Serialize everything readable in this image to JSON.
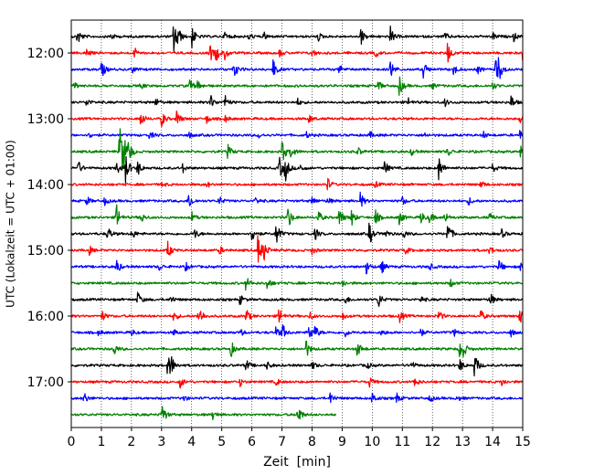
{
  "chart_data": {
    "type": "line",
    "title": "",
    "xlabel": "Zeit  [min]",
    "ylabel": "UTC (Lokalzeit = UTC + 01:00)",
    "xlim": [
      0,
      15
    ],
    "x_ticks": [
      "0",
      "1",
      "2",
      "3",
      "4",
      "5",
      "6",
      "7",
      "8",
      "9",
      "10",
      "11",
      "12",
      "13",
      "14",
      "15"
    ],
    "y_ticks": [
      "12:00",
      "13:00",
      "14:00",
      "15:00",
      "16:00",
      "17:00"
    ],
    "grid": "vertical dotted at each minute",
    "trace_interval_min": 15,
    "colors_cycle": [
      "#000000",
      "#ff0000",
      "#0000ff",
      "#008000"
    ],
    "series": [
      {
        "start": "11:45",
        "color": "#000000",
        "end_min": 15,
        "events": [
          [
            0.2,
            0.9
          ],
          [
            1.3,
            0.4
          ],
          [
            3.4,
            1.6
          ],
          [
            3.5,
            1.0
          ],
          [
            4.0,
            1.1
          ],
          [
            5.1,
            0.5
          ],
          [
            5.9,
            0.4
          ],
          [
            6.4,
            0.4
          ],
          [
            8.2,
            0.4
          ],
          [
            9.6,
            1.0
          ],
          [
            10.6,
            0.9
          ],
          [
            12.4,
            0.4
          ],
          [
            14.0,
            0.4
          ],
          [
            14.7,
            0.4
          ]
        ]
      },
      {
        "start": "12:00",
        "color": "#ff0000",
        "end_min": 15,
        "events": [
          [
            0.5,
            0.4
          ],
          [
            2.1,
            0.5
          ],
          [
            4.6,
            0.9
          ],
          [
            4.8,
            0.8
          ],
          [
            5.1,
            0.6
          ],
          [
            6.9,
            0.4
          ],
          [
            8.0,
            0.4
          ],
          [
            10.1,
            0.4
          ],
          [
            12.5,
            1.1
          ],
          [
            15.0,
            0.9
          ]
        ]
      },
      {
        "start": "12:15",
        "color": "#0000ff",
        "end_min": 15,
        "events": [
          [
            1.0,
            0.9
          ],
          [
            2.0,
            0.4
          ],
          [
            5.4,
            0.9
          ],
          [
            6.7,
            1.0
          ],
          [
            8.9,
            0.5
          ],
          [
            10.6,
            1.0
          ],
          [
            11.7,
            0.8
          ],
          [
            12.7,
            0.6
          ],
          [
            13.5,
            0.4
          ],
          [
            14.1,
            1.3
          ],
          [
            14.2,
            0.9
          ]
        ]
      },
      {
        "start": "12:30",
        "color": "#008000",
        "end_min": 15,
        "events": [
          [
            0.1,
            0.3
          ],
          [
            2.3,
            0.3
          ],
          [
            3.9,
            0.9
          ],
          [
            4.2,
            0.5
          ],
          [
            10.2,
            0.5
          ],
          [
            10.9,
            1.0
          ],
          [
            12.0,
            0.3
          ],
          [
            14.0,
            0.4
          ]
        ]
      },
      {
        "start": "12:45",
        "color": "#000000",
        "end_min": 15,
        "events": [
          [
            0.5,
            0.4
          ],
          [
            2.8,
            0.4
          ],
          [
            4.6,
            0.9
          ],
          [
            5.1,
            0.7
          ],
          [
            7.5,
            0.4
          ],
          [
            11.2,
            0.4
          ],
          [
            12.4,
            0.4
          ],
          [
            14.6,
            0.8
          ]
        ]
      },
      {
        "start": "13:00",
        "color": "#ff0000",
        "end_min": 15,
        "events": [
          [
            2.3,
            0.8
          ],
          [
            3.0,
            0.8
          ],
          [
            3.5,
            0.9
          ],
          [
            4.5,
            0.4
          ],
          [
            5.1,
            0.4
          ],
          [
            7.9,
            0.4
          ],
          [
            14.9,
            0.4
          ]
        ]
      },
      {
        "start": "13:15",
        "color": "#0000ff",
        "end_min": 15,
        "events": [
          [
            0.6,
            0.3
          ],
          [
            2.6,
            0.4
          ],
          [
            3.9,
            0.3
          ],
          [
            6.2,
            0.3
          ],
          [
            7.8,
            0.3
          ],
          [
            9.9,
            0.4
          ],
          [
            11.7,
            0.3
          ],
          [
            13.7,
            0.3
          ],
          [
            14.9,
            0.4
          ]
        ]
      },
      {
        "start": "13:30",
        "color": "#008000",
        "end_min": 15,
        "events": [
          [
            1.6,
            2.6
          ],
          [
            1.7,
            1.8
          ],
          [
            1.9,
            1.0
          ],
          [
            5.2,
            0.7
          ],
          [
            7.0,
            1.2
          ],
          [
            7.3,
            0.7
          ],
          [
            9.5,
            0.5
          ],
          [
            11.3,
            0.4
          ],
          [
            12.5,
            0.5
          ],
          [
            14.9,
            0.7
          ]
        ]
      },
      {
        "start": "13:45",
        "color": "#000000",
        "end_min": 15,
        "events": [
          [
            0.2,
            0.9
          ],
          [
            1.5,
            0.6
          ],
          [
            1.8,
            1.5
          ],
          [
            2.2,
            0.8
          ],
          [
            3.7,
            0.4
          ],
          [
            6.9,
            1.2
          ],
          [
            7.1,
            1.3
          ],
          [
            7.6,
            0.4
          ],
          [
            10.4,
            0.8
          ],
          [
            12.2,
            1.4
          ],
          [
            14.0,
            0.4
          ]
        ]
      },
      {
        "start": "14:00",
        "color": "#ff0000",
        "end_min": 15,
        "events": [
          [
            3.0,
            0.3
          ],
          [
            4.5,
            0.3
          ],
          [
            8.5,
            0.7
          ],
          [
            10.1,
            0.3
          ],
          [
            13.6,
            0.4
          ]
        ]
      },
      {
        "start": "14:15",
        "color": "#0000ff",
        "end_min": 15,
        "events": [
          [
            0.5,
            0.5
          ],
          [
            1.1,
            0.4
          ],
          [
            3.9,
            0.9
          ],
          [
            4.9,
            0.5
          ],
          [
            6.1,
            0.4
          ],
          [
            8.0,
            0.4
          ],
          [
            8.5,
            0.4
          ],
          [
            9.6,
            0.8
          ],
          [
            11.0,
            0.4
          ],
          [
            13.2,
            0.4
          ]
        ]
      },
      {
        "start": "14:30",
        "color": "#008000",
        "end_min": 15,
        "events": [
          [
            1.5,
            1.3
          ],
          [
            2.3,
            0.6
          ],
          [
            4.0,
            0.5
          ],
          [
            7.2,
            1.2
          ],
          [
            8.2,
            0.7
          ],
          [
            8.9,
            1.1
          ],
          [
            9.3,
            0.9
          ],
          [
            10.1,
            0.8
          ],
          [
            10.9,
            0.7
          ],
          [
            11.6,
            0.7
          ],
          [
            11.9,
            0.6
          ],
          [
            12.4,
            0.6
          ],
          [
            13.9,
            0.4
          ]
        ]
      },
      {
        "start": "14:45",
        "color": "#000000",
        "end_min": 15,
        "events": [
          [
            1.2,
            0.8
          ],
          [
            2.0,
            0.6
          ],
          [
            4.1,
            0.5
          ],
          [
            6.0,
            0.9
          ],
          [
            6.8,
            1.5
          ],
          [
            8.1,
            0.6
          ],
          [
            9.9,
            1.2
          ],
          [
            10.4,
            0.6
          ],
          [
            11.0,
            0.6
          ],
          [
            12.5,
            1.3
          ],
          [
            14.3,
            0.4
          ]
        ]
      },
      {
        "start": "15:00",
        "color": "#ff0000",
        "end_min": 15,
        "events": [
          [
            0.6,
            0.4
          ],
          [
            3.2,
            0.9
          ],
          [
            4.9,
            0.5
          ],
          [
            6.2,
            1.7
          ],
          [
            6.4,
            0.9
          ],
          [
            8.0,
            0.4
          ],
          [
            11.1,
            0.4
          ],
          [
            13.9,
            0.5
          ]
        ]
      },
      {
        "start": "15:15",
        "color": "#0000ff",
        "end_min": 15,
        "events": [
          [
            1.5,
            0.8
          ],
          [
            2.9,
            0.4
          ],
          [
            3.8,
            0.4
          ],
          [
            9.8,
            0.7
          ],
          [
            10.3,
            0.7
          ],
          [
            11.9,
            0.4
          ],
          [
            14.2,
            0.8
          ],
          [
            14.9,
            0.6
          ]
        ]
      },
      {
        "start": "15:30",
        "color": "#008000",
        "end_min": 15,
        "events": [
          [
            5.8,
            0.7
          ],
          [
            6.5,
            0.7
          ],
          [
            9.0,
            0.4
          ],
          [
            12.6,
            0.4
          ]
        ]
      },
      {
        "start": "15:45",
        "color": "#000000",
        "end_min": 15,
        "events": [
          [
            2.2,
            0.8
          ],
          [
            3.3,
            0.4
          ],
          [
            5.6,
            0.5
          ],
          [
            9.1,
            0.4
          ],
          [
            10.2,
            0.8
          ],
          [
            11.6,
            0.4
          ],
          [
            13.9,
            0.8
          ]
        ]
      },
      {
        "start": "16:00",
        "color": "#ff0000",
        "end_min": 15,
        "events": [
          [
            1.0,
            0.6
          ],
          [
            3.4,
            0.6
          ],
          [
            4.2,
            0.5
          ],
          [
            4.3,
            0.5
          ],
          [
            5.8,
            0.8
          ],
          [
            6.9,
            0.9
          ],
          [
            7.9,
            0.5
          ],
          [
            9.0,
            0.4
          ],
          [
            10.9,
            0.7
          ],
          [
            12.2,
            0.6
          ],
          [
            13.6,
            0.6
          ],
          [
            14.9,
            1.0
          ]
        ]
      },
      {
        "start": "16:15",
        "color": "#0000ff",
        "end_min": 15,
        "events": [
          [
            0.9,
            0.3
          ],
          [
            2.0,
            0.3
          ],
          [
            3.4,
            0.3
          ],
          [
            5.6,
            0.4
          ],
          [
            6.8,
            0.5
          ],
          [
            7.0,
            0.9
          ],
          [
            7.9,
            0.9
          ],
          [
            8.1,
            0.6
          ],
          [
            9.1,
            0.4
          ],
          [
            10.3,
            0.4
          ],
          [
            11.6,
            0.4
          ],
          [
            12.7,
            0.4
          ],
          [
            14.6,
            0.4
          ]
        ]
      },
      {
        "start": "16:30",
        "color": "#008000",
        "end_min": 15,
        "events": [
          [
            1.4,
            0.7
          ],
          [
            5.3,
            0.8
          ],
          [
            7.8,
            0.9
          ],
          [
            9.5,
            0.9
          ],
          [
            12.9,
            0.9
          ],
          [
            13.0,
            0.7
          ]
        ]
      },
      {
        "start": "16:45",
        "color": "#000000",
        "end_min": 15,
        "events": [
          [
            3.2,
            1.1
          ],
          [
            3.3,
            0.9
          ],
          [
            5.8,
            0.6
          ],
          [
            6.5,
            0.4
          ],
          [
            8.0,
            0.4
          ],
          [
            9.8,
            0.4
          ],
          [
            11.3,
            0.4
          ],
          [
            12.9,
            0.7
          ],
          [
            13.4,
            1.3
          ]
        ]
      },
      {
        "start": "17:00",
        "color": "#ff0000",
        "end_min": 15,
        "events": [
          [
            3.6,
            0.7
          ],
          [
            5.6,
            0.4
          ],
          [
            6.8,
            0.4
          ],
          [
            9.9,
            0.5
          ],
          [
            11.4,
            0.6
          ],
          [
            14.3,
            0.4
          ]
        ]
      },
      {
        "start": "17:15",
        "color": "#0000ff",
        "end_min": 15,
        "events": [
          [
            0.4,
            0.7
          ],
          [
            3.7,
            0.4
          ],
          [
            8.6,
            0.6
          ],
          [
            10.0,
            0.6
          ],
          [
            10.8,
            0.5
          ],
          [
            11.9,
            0.4
          ],
          [
            12.8,
            0.4
          ]
        ]
      },
      {
        "start": "17:30",
        "color": "#008000",
        "end_min": 8.8,
        "events": [
          [
            3.0,
            1.3
          ],
          [
            4.7,
            0.5
          ],
          [
            7.5,
            1.5
          ]
        ]
      }
    ]
  }
}
